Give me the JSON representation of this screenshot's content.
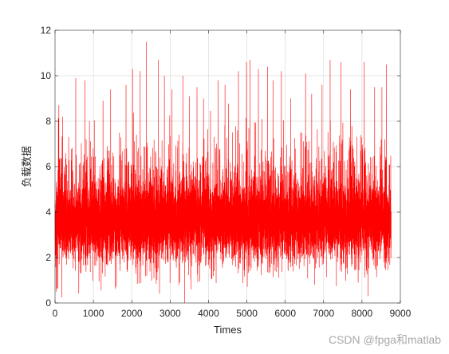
{
  "chart_data": {
    "type": "line",
    "title": "",
    "xlabel": "Times",
    "ylabel": "负载数据",
    "xlim": [
      0,
      9000
    ],
    "ylim": [
      0,
      12
    ],
    "xticks": [
      0,
      1000,
      2000,
      3000,
      4000,
      5000,
      6000,
      7000,
      8000,
      9000
    ],
    "yticks": [
      0,
      2,
      4,
      6,
      8,
      10,
      12
    ],
    "grid": true,
    "line_color": "#ff0000",
    "series": [
      {
        "n_points": 8760,
        "x_range": [
          1,
          8760
        ],
        "baseline_mean": 3.6,
        "typical_band": [
          2.5,
          5.0
        ],
        "peaks": [
          {
            "x": 100,
            "y": 8.7
          },
          {
            "x": 200,
            "y": 8.2
          },
          {
            "x": 540,
            "y": 9.9
          },
          {
            "x": 780,
            "y": 9.8
          },
          {
            "x": 1250,
            "y": 8.9
          },
          {
            "x": 1450,
            "y": 9.4
          },
          {
            "x": 1850,
            "y": 9.6
          },
          {
            "x": 2020,
            "y": 10.3
          },
          {
            "x": 2220,
            "y": 10.2
          },
          {
            "x": 2380,
            "y": 11.5
          },
          {
            "x": 2690,
            "y": 10.7
          },
          {
            "x": 2850,
            "y": 10.0
          },
          {
            "x": 3050,
            "y": 9.4
          },
          {
            "x": 3330,
            "y": 10.0
          },
          {
            "x": 3500,
            "y": 9.1
          },
          {
            "x": 3700,
            "y": 9.5
          },
          {
            "x": 3870,
            "y": 9.0
          },
          {
            "x": 4250,
            "y": 9.8
          },
          {
            "x": 4430,
            "y": 9.6
          },
          {
            "x": 4780,
            "y": 10.2
          },
          {
            "x": 4990,
            "y": 10.6
          },
          {
            "x": 5080,
            "y": 10.7
          },
          {
            "x": 5300,
            "y": 10.3
          },
          {
            "x": 5540,
            "y": 10.4
          },
          {
            "x": 5680,
            "y": 9.8
          },
          {
            "x": 5900,
            "y": 10.2
          },
          {
            "x": 6140,
            "y": 9.0
          },
          {
            "x": 6530,
            "y": 10.1
          },
          {
            "x": 6690,
            "y": 9.2
          },
          {
            "x": 6960,
            "y": 9.6
          },
          {
            "x": 7170,
            "y": 10.7
          },
          {
            "x": 7450,
            "y": 10.6
          },
          {
            "x": 7700,
            "y": 9.4
          },
          {
            "x": 8060,
            "y": 10.6
          },
          {
            "x": 8330,
            "y": 9.5
          },
          {
            "x": 8520,
            "y": 9.5
          },
          {
            "x": 8640,
            "y": 10.5
          }
        ],
        "troughs": [
          {
            "x": 30,
            "y": 0.5
          },
          {
            "x": 180,
            "y": 0.25
          },
          {
            "x": 3380,
            "y": 0.0
          },
          {
            "x": 3540,
            "y": 0.6
          },
          {
            "x": 6770,
            "y": 0.8
          },
          {
            "x": 7900,
            "y": 0.9
          },
          {
            "x": 8160,
            "y": 0.3
          }
        ]
      }
    ]
  },
  "watermark": "CSDN @fpga和matlab"
}
